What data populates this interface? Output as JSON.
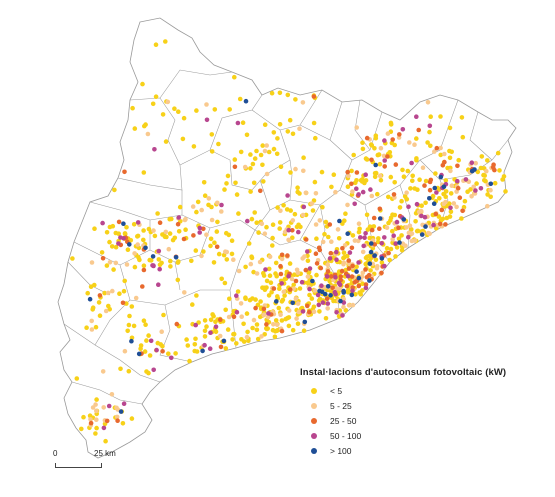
{
  "legend": {
    "title": "Instal·lacions d'autoconsum fotovoltaic (kW)",
    "classes": [
      {
        "label": "< 5",
        "color": "#f7d118"
      },
      {
        "label": "5 - 25",
        "color": "#f9c98e"
      },
      {
        "label": "25 - 50",
        "color": "#e8692e"
      },
      {
        "label": "50 - 100",
        "color": "#b8468f"
      },
      {
        "label": "> 100",
        "color": "#1f4e96"
      }
    ]
  },
  "scale": {
    "start": "0",
    "end": "25 km"
  },
  "map": {
    "outline_color": "#9a9a9a",
    "fill_color": "#ffffff"
  }
}
